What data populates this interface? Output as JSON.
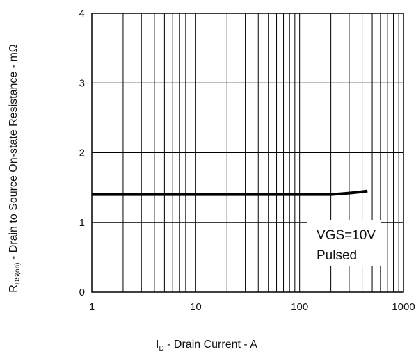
{
  "chart_data": {
    "type": "line",
    "xlabel": {
      "main": "I",
      "sub": "D",
      "rest": " - Drain Current - A"
    },
    "ylabel": {
      "main": "R",
      "sub": "DS(on)",
      "rest": " - Drain to Source On-state Resistance - mΩ"
    },
    "x_scale": "log",
    "xlim": [
      1,
      1000
    ],
    "ylim": [
      0,
      4
    ],
    "x_ticks": [
      1,
      10,
      100,
      1000
    ],
    "x_tick_labels": [
      "1",
      "10",
      "100",
      "1000"
    ],
    "y_ticks": [
      0,
      1,
      2,
      3,
      4
    ],
    "y_tick_labels": [
      "0",
      "1",
      "2",
      "3",
      "4"
    ],
    "grid": true,
    "series": [
      {
        "x": [
          1,
          2,
          5,
          10,
          20,
          50,
          100,
          150,
          200,
          250,
          300,
          350,
          400,
          450
        ],
        "y": [
          1.4,
          1.4,
          1.4,
          1.4,
          1.4,
          1.4,
          1.4,
          1.4,
          1.4,
          1.41,
          1.42,
          1.43,
          1.44,
          1.45
        ]
      }
    ],
    "annotation": {
      "lines": [
        "VGS=10V",
        "Pulsed"
      ],
      "position": "bottom-right"
    },
    "line_color": "#000000",
    "grid_color": "#000000"
  }
}
